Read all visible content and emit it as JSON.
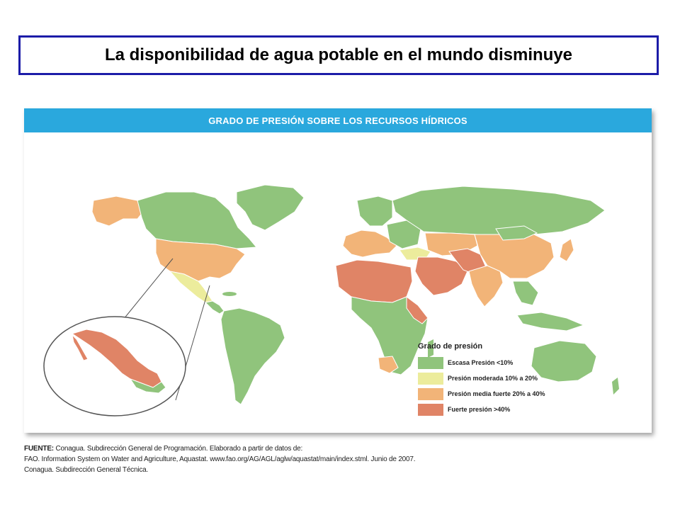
{
  "title": "La disponibilidad de agua potable en el mundo disminuye",
  "map": {
    "header": "GRADO DE PRESIÓN SOBRE LOS RECURSOS HÍDRICOS",
    "inset_region": "Mexico",
    "legend": {
      "title": "Grado de presión",
      "items": [
        {
          "label": "Escasa Presión <10%",
          "color": "#90c47c"
        },
        {
          "label": "Presión moderada 10% a 20%",
          "color": "#ecec9c"
        },
        {
          "label": "Presión media fuerte 20% a 40%",
          "color": "#f2b478"
        },
        {
          "label": "Fuerte presión >40%",
          "color": "#e08466"
        }
      ]
    }
  },
  "source": {
    "label": "FUENTE:",
    "line1": "Conagua. Subdirección General de Programación. Elaborado a partir de datos de:",
    "line2": "FAO. Information System on Water and Agriculture, Aquastat. www.fao.org/AG/AGL/aglw/aquastat/main/index.stml. Junio de 2007.",
    "line3": "Conagua. Subdirección General Técnica."
  }
}
